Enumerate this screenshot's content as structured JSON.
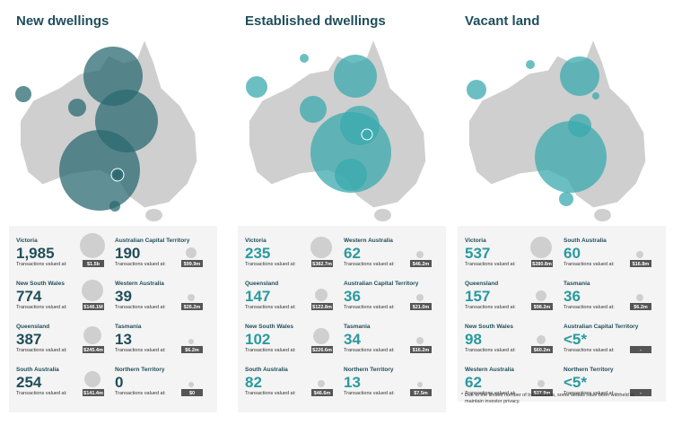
{
  "value_caption": "Transactions valued at:",
  "footnote": "* Due to the limited number of transactions, some details have been withheld to maintain investor privacy.",
  "panels": [
    {
      "title": "New dwellings",
      "items": [
        {
          "state": "Victoria",
          "count": "1,985",
          "value": "$1.5b"
        },
        {
          "state": "Australian Capital Territory",
          "count": "190",
          "value": "$99.9m"
        },
        {
          "state": "New South Wales",
          "count": "774",
          "value": "$146.1M"
        },
        {
          "state": "Western Australia",
          "count": "39",
          "value": "$26.2m"
        },
        {
          "state": "Queensland",
          "count": "387",
          "value": "$245.4m"
        },
        {
          "state": "Tasmania",
          "count": "13",
          "value": "$6.2m"
        },
        {
          "state": "South Australia",
          "count": "254",
          "value": "$141.4m"
        },
        {
          "state": "Northern Territory",
          "count": "0",
          "value": "$0"
        }
      ]
    },
    {
      "title": "Established dwellings",
      "items": [
        {
          "state": "Victoria",
          "count": "235",
          "value": "$382.7m"
        },
        {
          "state": "Western Australia",
          "count": "62",
          "value": "$46.2m"
        },
        {
          "state": "Queensland",
          "count": "147",
          "value": "$122.8m"
        },
        {
          "state": "Australian Capital Territory",
          "count": "36",
          "value": "$21.0m"
        },
        {
          "state": "New South Wales",
          "count": "102",
          "value": "$226.6m"
        },
        {
          "state": "Tasmania",
          "count": "34",
          "value": "$16.2m"
        },
        {
          "state": "South Australia",
          "count": "82",
          "value": "$46.6m"
        },
        {
          "state": "Northern Territory",
          "count": "13",
          "value": "$7.5m"
        }
      ]
    },
    {
      "title": "Vacant land",
      "items": [
        {
          "state": "Victoria",
          "count": "537",
          "value": "$280.8m"
        },
        {
          "state": "South Australia",
          "count": "60",
          "value": "$16.8m"
        },
        {
          "state": "Queensland",
          "count": "157",
          "value": "$98.2m"
        },
        {
          "state": "Tasmania",
          "count": "36",
          "value": "$6.2m"
        },
        {
          "state": "New South Wales",
          "count": "98",
          "value": "$60.2m"
        },
        {
          "state": "Australian Capital Territory",
          "count": "<5*",
          "value": "-"
        },
        {
          "state": "Western Australia",
          "count": "62",
          "value": "$27.9m"
        },
        {
          "state": "Northern Territory",
          "count": "<5*",
          "value": "-"
        }
      ]
    }
  ]
}
